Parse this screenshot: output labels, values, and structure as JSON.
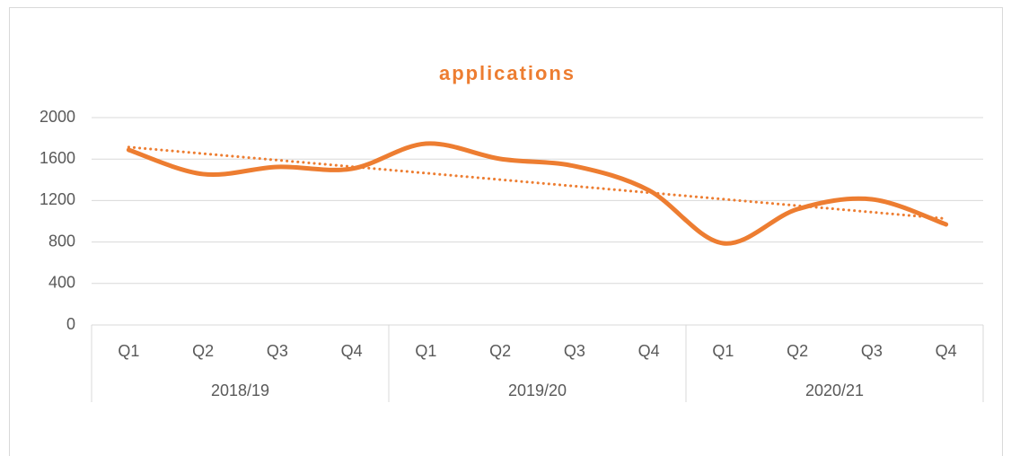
{
  "chart_data": {
    "type": "line",
    "title": "applications",
    "categories": [
      "Q1",
      "Q2",
      "Q3",
      "Q4",
      "Q1",
      "Q2",
      "Q3",
      "Q4",
      "Q1",
      "Q2",
      "Q3",
      "Q4"
    ],
    "groups": [
      "2018/19",
      "2019/20",
      "2020/21"
    ],
    "series": [
      {
        "name": "applications",
        "color": "#ED7D31",
        "values": [
          1688,
          1455,
          1524,
          1506,
          1749,
          1602,
          1532,
          1299,
          788,
          1117,
          1212,
          970
        ]
      }
    ],
    "ylim": [
      0,
      2000
    ],
    "yticks": [
      0,
      400,
      800,
      1200,
      1600,
      2000
    ],
    "grid": true,
    "smooth": true,
    "trendline": "linear"
  }
}
